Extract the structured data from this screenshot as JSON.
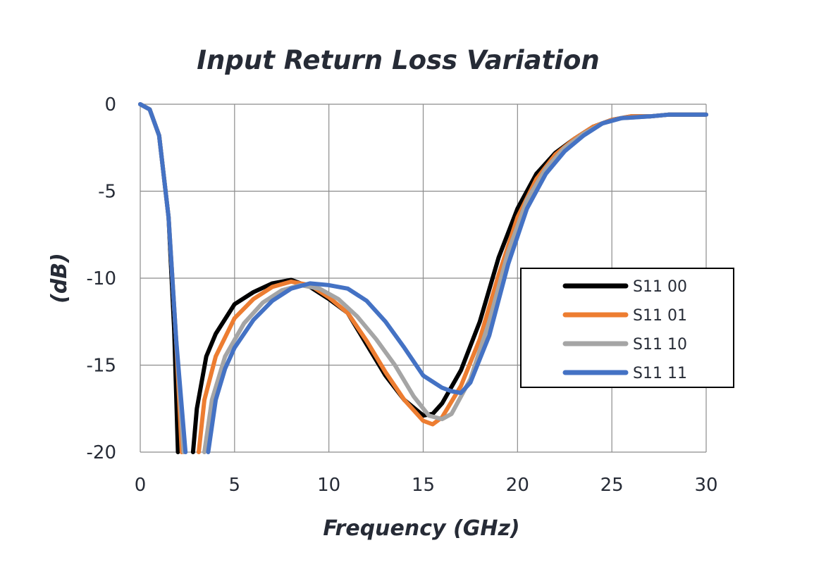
{
  "chart_data": {
    "type": "line",
    "title": "Input Return Loss Variation",
    "xlabel": "Frequency (GHz)",
    "ylabel": "(dB)",
    "xlim": [
      0,
      30
    ],
    "ylim": [
      -20,
      0
    ],
    "x_ticks": [
      "0",
      "5",
      "10",
      "15",
      "20",
      "25",
      "30"
    ],
    "y_ticks": [
      "0",
      "-5",
      "-10",
      "-15",
      "-20"
    ],
    "grid": true,
    "legend_position": "right",
    "series": [
      {
        "name": "S11 00",
        "color": "#000000",
        "points": [
          [
            0,
            0
          ],
          [
            0.5,
            -0.3
          ],
          [
            1,
            -1.8
          ],
          [
            1.5,
            -6.5
          ],
          [
            1.8,
            -13
          ],
          [
            2.0,
            -20
          ]
        ],
        "points2": [
          [
            2.8,
            -20
          ],
          [
            3,
            -17.5
          ],
          [
            3.5,
            -14.5
          ],
          [
            4,
            -13.2
          ],
          [
            5,
            -11.5
          ],
          [
            6,
            -10.8
          ],
          [
            7,
            -10.3
          ],
          [
            8,
            -10.1
          ],
          [
            9,
            -10.5
          ],
          [
            10,
            -11.2
          ],
          [
            11,
            -12
          ],
          [
            12,
            -13.8
          ],
          [
            13,
            -15.6
          ],
          [
            14,
            -17
          ],
          [
            15,
            -17.9
          ],
          [
            15.5,
            -17.8
          ],
          [
            16,
            -17.2
          ],
          [
            17,
            -15.3
          ],
          [
            18,
            -12.5
          ],
          [
            19,
            -8.8
          ],
          [
            20,
            -6
          ],
          [
            21,
            -4
          ],
          [
            22,
            -2.8
          ],
          [
            23,
            -2
          ],
          [
            24,
            -1.3
          ],
          [
            25,
            -0.9
          ],
          [
            26,
            -0.7
          ],
          [
            27,
            -0.7
          ],
          [
            28,
            -0.6
          ],
          [
            29,
            -0.6
          ],
          [
            30,
            -0.6
          ]
        ]
      },
      {
        "name": "S11 01",
        "color": "#ed7d31",
        "points": [
          [
            0,
            0
          ],
          [
            0.5,
            -0.3
          ],
          [
            1,
            -1.8
          ],
          [
            1.5,
            -6.5
          ],
          [
            1.9,
            -13.5
          ],
          [
            2.2,
            -20
          ]
        ],
        "points2": [
          [
            3.1,
            -20
          ],
          [
            3.4,
            -17
          ],
          [
            4,
            -14.5
          ],
          [
            5,
            -12.3
          ],
          [
            6,
            -11.2
          ],
          [
            7,
            -10.5
          ],
          [
            8,
            -10.2
          ],
          [
            9,
            -10.4
          ],
          [
            10,
            -11.1
          ],
          [
            11,
            -12
          ],
          [
            12,
            -13.6
          ],
          [
            13,
            -15.4
          ],
          [
            14,
            -17
          ],
          [
            15,
            -18.2
          ],
          [
            15.5,
            -18.4
          ],
          [
            16,
            -18
          ],
          [
            17,
            -16.2
          ],
          [
            18,
            -13.5
          ],
          [
            19,
            -9.8
          ],
          [
            20,
            -6.5
          ],
          [
            21,
            -4.3
          ],
          [
            22,
            -2.9
          ],
          [
            23,
            -2
          ],
          [
            24,
            -1.3
          ],
          [
            25,
            -0.9
          ],
          [
            26,
            -0.7
          ],
          [
            27,
            -0.7
          ],
          [
            28,
            -0.6
          ],
          [
            29,
            -0.6
          ],
          [
            30,
            -0.6
          ]
        ]
      },
      {
        "name": "S11 10",
        "color": "#a5a5a5",
        "points": [
          [
            0,
            0
          ],
          [
            0.5,
            -0.3
          ],
          [
            1,
            -1.8
          ],
          [
            1.5,
            -6.5
          ],
          [
            1.9,
            -13.5
          ],
          [
            2.3,
            -20
          ]
        ],
        "points2": [
          [
            3.4,
            -20
          ],
          [
            3.8,
            -17
          ],
          [
            4.5,
            -14.5
          ],
          [
            5.5,
            -12.6
          ],
          [
            6.5,
            -11.4
          ],
          [
            7.5,
            -10.7
          ],
          [
            8.5,
            -10.4
          ],
          [
            9.5,
            -10.6
          ],
          [
            10.5,
            -11.2
          ],
          [
            11.5,
            -12.2
          ],
          [
            12.5,
            -13.5
          ],
          [
            13.5,
            -15
          ],
          [
            14.5,
            -16.8
          ],
          [
            15.3,
            -17.9
          ],
          [
            16,
            -18.1
          ],
          [
            16.5,
            -17.8
          ],
          [
            17.5,
            -15.8
          ],
          [
            18.5,
            -12.5
          ],
          [
            19.5,
            -8.5
          ],
          [
            20.5,
            -5.5
          ],
          [
            21.5,
            -3.7
          ],
          [
            22.5,
            -2.5
          ],
          [
            23.5,
            -1.7
          ],
          [
            24.5,
            -1.1
          ],
          [
            25.5,
            -0.8
          ],
          [
            27,
            -0.7
          ],
          [
            28,
            -0.6
          ],
          [
            29,
            -0.6
          ],
          [
            30,
            -0.6
          ]
        ]
      },
      {
        "name": "S11 11",
        "color": "#4472c4",
        "points": [
          [
            0,
            0
          ],
          [
            0.5,
            -0.3
          ],
          [
            1,
            -1.8
          ],
          [
            1.5,
            -6.5
          ],
          [
            1.9,
            -13.5
          ],
          [
            2.4,
            -20
          ]
        ],
        "points2": [
          [
            3.6,
            -20
          ],
          [
            4,
            -17
          ],
          [
            4.5,
            -15.2
          ],
          [
            5,
            -14
          ],
          [
            6,
            -12.4
          ],
          [
            7,
            -11.3
          ],
          [
            8,
            -10.6
          ],
          [
            9,
            -10.3
          ],
          [
            10,
            -10.4
          ],
          [
            11,
            -10.6
          ],
          [
            12,
            -11.3
          ],
          [
            13,
            -12.5
          ],
          [
            14,
            -14
          ],
          [
            15,
            -15.6
          ],
          [
            16,
            -16.3
          ],
          [
            16.5,
            -16.5
          ],
          [
            17,
            -16.6
          ],
          [
            17.5,
            -16
          ],
          [
            18.5,
            -13.3
          ],
          [
            19.5,
            -9.2
          ],
          [
            20.5,
            -6
          ],
          [
            21.5,
            -4
          ],
          [
            22.5,
            -2.7
          ],
          [
            23.5,
            -1.8
          ],
          [
            24.5,
            -1.1
          ],
          [
            25.5,
            -0.8
          ],
          [
            27,
            -0.7
          ],
          [
            28,
            -0.6
          ],
          [
            29,
            -0.6
          ],
          [
            30,
            -0.6
          ]
        ]
      }
    ]
  }
}
